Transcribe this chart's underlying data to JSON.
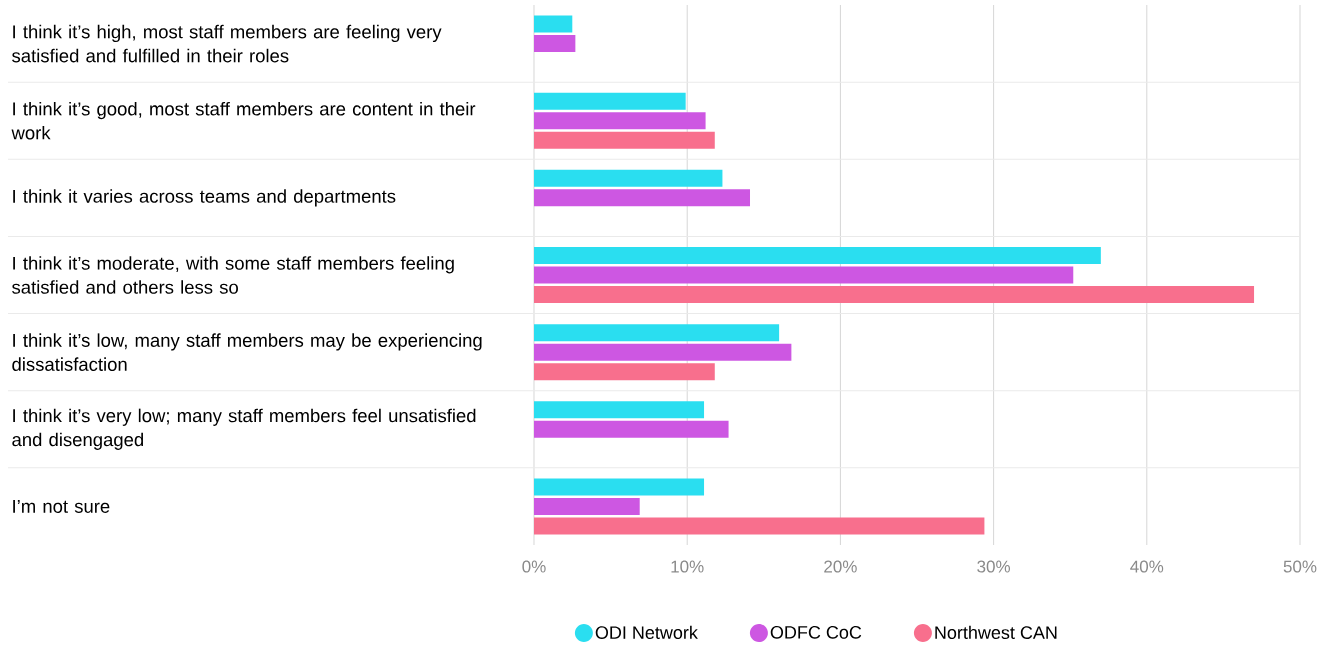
{
  "chart_data": {
    "type": "bar",
    "orientation": "horizontal",
    "categories": [
      "I think it’s high, most staff members are feeling very satisfied and fulfilled in their roles",
      "I think it’s good, most staff members are content in their work",
      "I think it varies across teams and departments",
      "I think it’s moderate, with some staff members feeling satisfied and others less so",
      "I think it’s low, many staff members may be experiencing dissatisfaction",
      "I think it’s very low; many staff members feel unsatisfied and disengaged",
      "I’m not sure"
    ],
    "series": [
      {
        "name": "ODI Network",
        "color": "#2adef0",
        "values": [
          2.5,
          9.9,
          12.3,
          37.0,
          16.0,
          11.1,
          11.1
        ]
      },
      {
        "name": "ODFC CoC",
        "color": "#cd57e2",
        "values": [
          2.7,
          11.2,
          14.1,
          35.2,
          16.8,
          12.7,
          6.9
        ]
      },
      {
        "name": "Northwest CAN",
        "color": "#f86f8d",
        "values": [
          null,
          11.8,
          null,
          47.0,
          11.8,
          null,
          29.4
        ]
      }
    ],
    "xlim": [
      0,
      50
    ],
    "xticks": [
      {
        "value": 0,
        "label": "0%"
      },
      {
        "value": 10,
        "label": "10%"
      },
      {
        "value": 20,
        "label": "20%"
      },
      {
        "value": 30,
        "label": "30%"
      },
      {
        "value": 40,
        "label": "40%"
      },
      {
        "value": 50,
        "label": "50%"
      }
    ],
    "grid": "x",
    "legend": "bottom"
  }
}
